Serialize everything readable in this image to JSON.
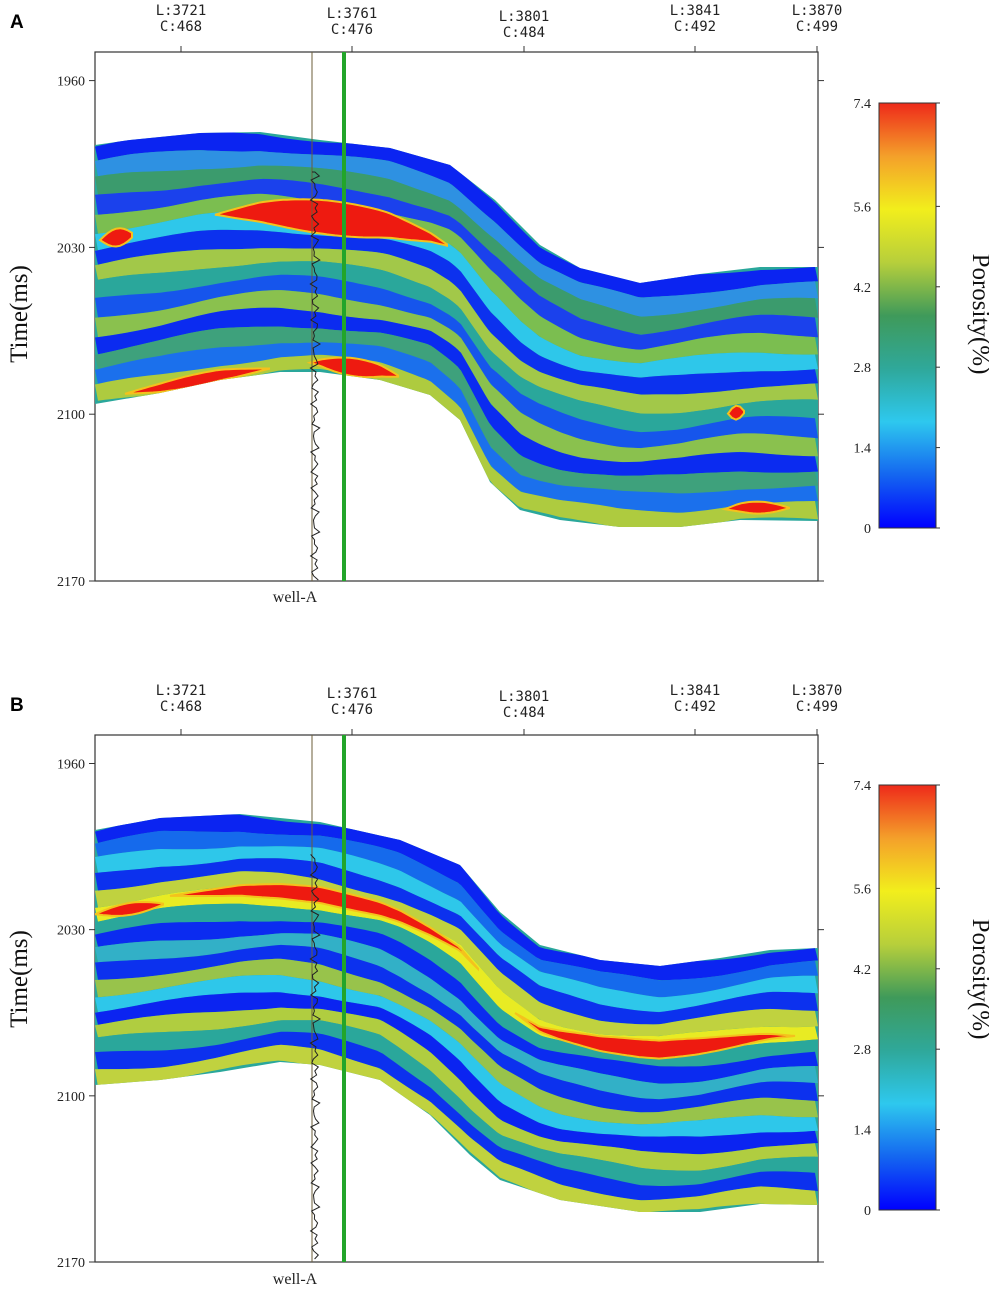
{
  "figure": {
    "panels": [
      {
        "letter": "A"
      },
      {
        "letter": "B"
      }
    ]
  },
  "colors": {
    "well_marker": "#22a52a",
    "well_log": "#222222",
    "colormap": [
      "#0000ff",
      "#1466f0",
      "#2ec8ee",
      "#2fa89a",
      "#3f9a5a",
      "#b7cf3b",
      "#f2ee1c",
      "#f4a02a",
      "#ee2a1a"
    ]
  },
  "chart_data": [
    {
      "type": "heatmap",
      "panel": "A",
      "ylabel": "Time(ms)",
      "ylim": [
        1948,
        2170
      ],
      "y_ticks": [
        1960,
        2030,
        2100,
        2170
      ],
      "x_ticks": [
        {
          "line": "L:3721",
          "cdp": "C:468"
        },
        {
          "line": "L:3761",
          "cdp": "C:476"
        },
        {
          "line": "L:3801",
          "cdp": "C:484"
        },
        {
          "line": "L:3841",
          "cdp": "C:492"
        },
        {
          "line": "L:3870",
          "cdp": "C:499"
        }
      ],
      "well_label": "well-A",
      "colorbar": {
        "label": "Porosity(%)",
        "min": 0,
        "max": 7.4,
        "ticks": [
          "7.4",
          "5.6",
          "4.2",
          "2.8",
          "1.4",
          "0"
        ]
      }
    },
    {
      "type": "heatmap",
      "panel": "B",
      "ylabel": "Time(ms)",
      "ylim": [
        1948,
        2170
      ],
      "y_ticks": [
        1960,
        2030,
        2100,
        2170
      ],
      "x_ticks": [
        {
          "line": "L:3721",
          "cdp": "C:468"
        },
        {
          "line": "L:3761",
          "cdp": "C:476"
        },
        {
          "line": "L:3801",
          "cdp": "C:484"
        },
        {
          "line": "L:3841",
          "cdp": "C:492"
        },
        {
          "line": "L:3870",
          "cdp": "C:499"
        }
      ],
      "well_label": "well-A",
      "colorbar": {
        "label": "Porosity(%)",
        "min": 0,
        "max": 7.4,
        "ticks": [
          "7.4",
          "5.6",
          "4.2",
          "2.8",
          "1.4",
          "0"
        ]
      }
    }
  ]
}
